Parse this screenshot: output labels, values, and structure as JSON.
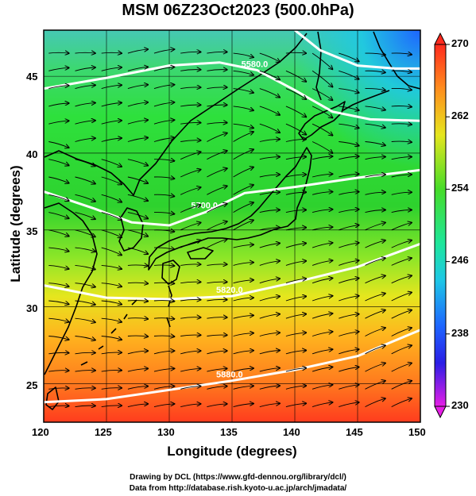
{
  "title": "MSM 06Z23Oct2023 (500.0hPa)",
  "axes": {
    "xlabel": "Longitude (degrees)",
    "ylabel": "Latitude  (degrees)",
    "xticks": [
      "120",
      "125",
      "130",
      "135",
      "140",
      "145",
      "150"
    ],
    "yticks": [
      "25",
      "30",
      "35",
      "40",
      "45"
    ],
    "xrange": [
      120,
      150
    ],
    "yrange": [
      22.5,
      48
    ]
  },
  "colorbar": {
    "labels": [
      "270",
      "262",
      "254",
      "246",
      "238",
      "230"
    ],
    "range": [
      230,
      270
    ]
  },
  "contours": [
    {
      "label": "5880.0",
      "points": [
        [
          120,
          23.8
        ],
        [
          125,
          24.0
        ],
        [
          130,
          24.6
        ],
        [
          135,
          25.2
        ],
        [
          140,
          25.9
        ],
        [
          145,
          26.8
        ],
        [
          150,
          28.5
        ]
      ]
    },
    {
      "label": "5820.0",
      "points": [
        [
          120,
          31.4
        ],
        [
          125,
          30.6
        ],
        [
          130,
          30.5
        ],
        [
          135,
          30.7
        ],
        [
          140,
          31.6
        ],
        [
          145,
          32.6
        ],
        [
          150,
          34.1
        ]
      ]
    },
    {
      "label": "5700.0",
      "points": [
        [
          120,
          37.5
        ],
        [
          124,
          36.4
        ],
        [
          127,
          35.5
        ],
        [
          130,
          35.3
        ],
        [
          133,
          36.2
        ],
        [
          136,
          37.4
        ],
        [
          140,
          37.8
        ],
        [
          145,
          38.4
        ],
        [
          150,
          38.9
        ]
      ]
    },
    {
      "label": "5580.0",
      "points": [
        [
          120,
          44.2
        ],
        [
          125,
          44.9
        ],
        [
          130,
          45.7
        ],
        [
          134,
          45.9
        ],
        [
          137,
          45.4
        ],
        [
          140,
          44.1
        ],
        [
          143,
          42.7
        ],
        [
          146,
          42.2
        ],
        [
          150,
          42.1
        ]
      ]
    },
    {
      "label": "",
      "points": [
        [
          140,
          48
        ],
        [
          142,
          46.7
        ],
        [
          145,
          45.7
        ],
        [
          148,
          45.5
        ],
        [
          150,
          45.5
        ]
      ]
    }
  ],
  "credits": {
    "line1": "Drawing by DCL (https://www.gfd-dennou.org/library/dcl/)",
    "line2": "Data from http://database.rish.kyoto-u.ac.jp/arch/jmadata/"
  },
  "colors": {
    "warm": "#ff5a1e",
    "mid": "#2bd42b",
    "cold": "#1e6eff",
    "contour": "#ffffff"
  }
}
